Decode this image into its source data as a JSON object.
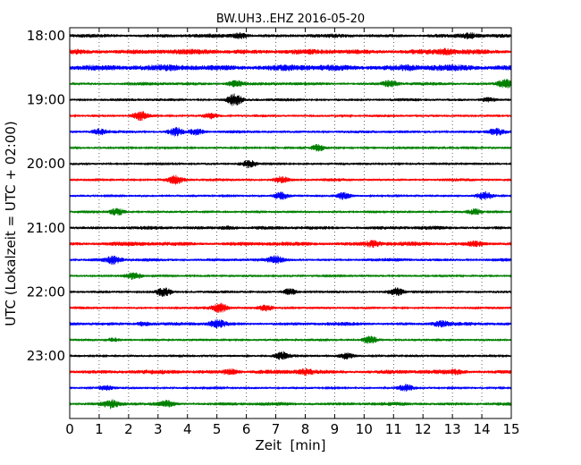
{
  "chart_data": {
    "type": "line",
    "title": "BW.UH3..EHZ 2016-05-20",
    "xlabel": "Zeit  [min]",
    "ylabel": "UTC (Lokalzeit = UTC + 02:00)",
    "xlim": [
      0,
      15
    ],
    "x_ticks": [
      "0",
      "1",
      "2",
      "3",
      "4",
      "5",
      "6",
      "7",
      "8",
      "9",
      "10",
      "11",
      "12",
      "13",
      "14",
      "15"
    ],
    "y_ticks": [
      {
        "label": "18:00",
        "row": 0
      },
      {
        "label": "19:00",
        "row": 4
      },
      {
        "label": "20:00",
        "row": 8
      },
      {
        "label": "21:00",
        "row": 12
      },
      {
        "label": "22:00",
        "row": 16
      },
      {
        "label": "23:00",
        "row": 20
      }
    ],
    "grid": "vertical dotted, every minute",
    "rows_per_hour": 4,
    "minutes_per_row": 15,
    "trace_colors": [
      "#000000",
      "#ff0000",
      "#0000ff",
      "#008000"
    ],
    "traces": [
      {
        "start": "18:00",
        "amplitude": 0.6,
        "bursts": [
          {
            "minute": 5.8,
            "level": 1.6
          },
          {
            "minute": 13.6,
            "level": 1.3
          }
        ]
      },
      {
        "start": "18:15",
        "amplitude": 0.8,
        "bursts": [
          {
            "minute": 12.8,
            "level": 1.4
          }
        ]
      },
      {
        "start": "18:30",
        "amplitude": 0.95,
        "bursts": [
          {
            "minute": 0.7,
            "level": 1.3
          },
          {
            "minute": 11.5,
            "level": 1.2
          }
        ]
      },
      {
        "start": "18:45",
        "amplitude": 0.5,
        "bursts": [
          {
            "minute": 5.6,
            "level": 2.0
          },
          {
            "minute": 10.9,
            "level": 1.6
          },
          {
            "minute": 14.8,
            "level": 2.4
          }
        ]
      },
      {
        "start": "19:00",
        "amplitude": 0.45,
        "bursts": [
          {
            "minute": 5.6,
            "level": 2.2
          },
          {
            "minute": 14.2,
            "level": 1.4
          }
        ]
      },
      {
        "start": "19:15",
        "amplitude": 0.4,
        "bursts": [
          {
            "minute": 2.4,
            "level": 1.5
          },
          {
            "minute": 4.8,
            "level": 1.2
          }
        ]
      },
      {
        "start": "19:30",
        "amplitude": 0.45,
        "bursts": [
          {
            "minute": 1.0,
            "level": 1.3
          },
          {
            "minute": 3.6,
            "level": 1.8
          },
          {
            "minute": 4.3,
            "level": 1.6
          },
          {
            "minute": 14.5,
            "level": 1.6
          }
        ]
      },
      {
        "start": "19:45",
        "amplitude": 0.3,
        "bursts": [
          {
            "minute": 8.4,
            "level": 1.5
          }
        ]
      },
      {
        "start": "20:00",
        "amplitude": 0.35,
        "bursts": [
          {
            "minute": 6.1,
            "level": 1.4
          }
        ]
      },
      {
        "start": "20:15",
        "amplitude": 0.45,
        "bursts": [
          {
            "minute": 3.6,
            "level": 1.6
          },
          {
            "minute": 7.2,
            "level": 1.4
          }
        ]
      },
      {
        "start": "20:30",
        "amplitude": 0.35,
        "bursts": [
          {
            "minute": 7.2,
            "level": 1.9
          },
          {
            "minute": 9.3,
            "level": 1.6
          },
          {
            "minute": 14.1,
            "level": 1.5
          }
        ]
      },
      {
        "start": "20:45",
        "amplitude": 0.35,
        "bursts": [
          {
            "minute": 1.6,
            "level": 1.5
          },
          {
            "minute": 13.8,
            "level": 1.4
          }
        ]
      },
      {
        "start": "21:00",
        "amplitude": 0.55,
        "bursts": [
          {
            "minute": 5.4,
            "level": 1.2
          }
        ]
      },
      {
        "start": "21:15",
        "amplitude": 0.65,
        "bursts": [
          {
            "minute": 10.3,
            "level": 1.6
          },
          {
            "minute": 13.8,
            "level": 1.3
          }
        ]
      },
      {
        "start": "21:30",
        "amplitude": 0.5,
        "bursts": [
          {
            "minute": 1.5,
            "level": 1.6
          },
          {
            "minute": 7.0,
            "level": 1.3
          }
        ]
      },
      {
        "start": "21:45",
        "amplitude": 0.35,
        "bursts": [
          {
            "minute": 2.2,
            "level": 1.2
          }
        ]
      },
      {
        "start": "22:00",
        "amplitude": 0.4,
        "bursts": [
          {
            "minute": 3.2,
            "level": 1.9
          },
          {
            "minute": 7.5,
            "level": 1.5
          },
          {
            "minute": 11.1,
            "level": 1.4
          }
        ]
      },
      {
        "start": "22:15",
        "amplitude": 0.4,
        "bursts": [
          {
            "minute": 5.1,
            "level": 2.0
          },
          {
            "minute": 6.7,
            "level": 1.4
          }
        ]
      },
      {
        "start": "22:30",
        "amplitude": 0.55,
        "bursts": [
          {
            "minute": 2.5,
            "level": 1.4
          },
          {
            "minute": 5.0,
            "level": 1.6
          },
          {
            "minute": 12.6,
            "level": 1.4
          }
        ]
      },
      {
        "start": "22:45",
        "amplitude": 0.4,
        "bursts": [
          {
            "minute": 1.5,
            "level": 1.3
          },
          {
            "minute": 10.2,
            "level": 1.6
          }
        ]
      },
      {
        "start": "23:00",
        "amplitude": 0.4,
        "bursts": [
          {
            "minute": 7.2,
            "level": 1.5
          },
          {
            "minute": 9.4,
            "level": 1.3
          }
        ]
      },
      {
        "start": "23:15",
        "amplitude": 0.65,
        "bursts": [
          {
            "minute": 5.5,
            "level": 1.6
          },
          {
            "minute": 8.0,
            "level": 1.5
          },
          {
            "minute": 13.2,
            "level": 1.2
          }
        ]
      },
      {
        "start": "23:30",
        "amplitude": 0.35,
        "bursts": [
          {
            "minute": 1.2,
            "level": 1.3
          },
          {
            "minute": 11.4,
            "level": 1.3
          }
        ]
      },
      {
        "start": "23:45",
        "amplitude": 0.55,
        "bursts": [
          {
            "minute": 1.4,
            "level": 1.4
          },
          {
            "minute": 3.3,
            "level": 1.3
          }
        ]
      }
    ]
  }
}
